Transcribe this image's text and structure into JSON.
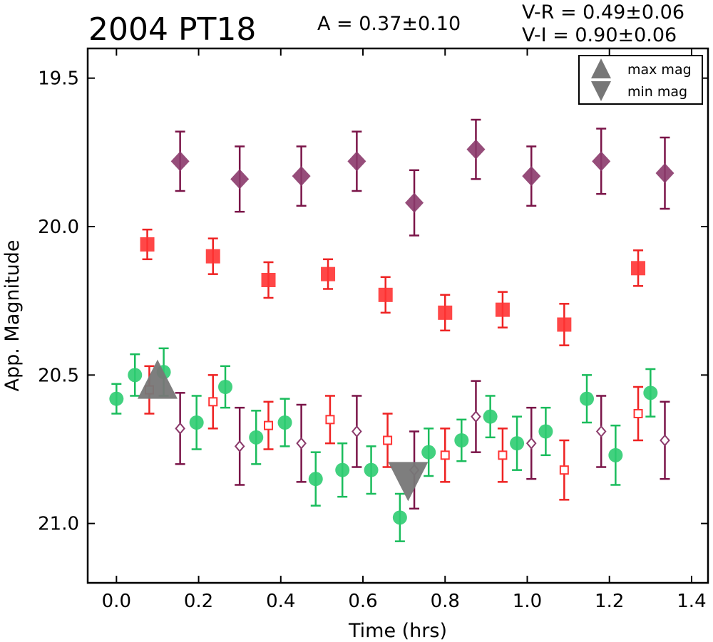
{
  "chart_data": {
    "type": "scatter",
    "title": "2004 PT18",
    "annotations": {
      "amplitude": "A  = 0.37±0.10",
      "v_minus_r": "V-R = 0.49±0.06",
      "v_minus_i": "V-I  = 0.90±0.06"
    },
    "xlabel": "Time (hrs)",
    "ylabel": "App. Magnitude",
    "xlim": [
      -0.07,
      1.44
    ],
    "ylim": [
      21.2,
      19.4
    ],
    "y_inverted": true,
    "xticks": [
      "0.0",
      "0.2",
      "0.4",
      "0.6",
      "0.8",
      "1.0",
      "1.2",
      "1.4"
    ],
    "yticks": [
      "19.5",
      "20.0",
      "20.5",
      "21.0"
    ],
    "grid": false,
    "legend": {
      "placement": "top-right",
      "entries": [
        {
          "label": "max mag",
          "marker": "triangle-up",
          "color": "#777777"
        },
        {
          "label": "min mag",
          "marker": "triangle-down",
          "color": "#777777"
        }
      ]
    },
    "colors": {
      "green": "#2ecc71",
      "green_err": "#1abc5c",
      "red": "#ff3333",
      "red_err": "#ee2222",
      "purple": "#8b3a6b",
      "purple_err": "#7a1448",
      "marker_gray": "#777777"
    },
    "series": [
      {
        "marker": "circle-filled",
        "color": "green",
        "points": [
          {
            "x": 0.0,
            "y": 20.58,
            "err": 0.05
          },
          {
            "x": 0.045,
            "y": 20.5,
            "err": 0.07
          },
          {
            "x": 0.115,
            "y": 20.49,
            "err": 0.08
          },
          {
            "x": 0.195,
            "y": 20.66,
            "err": 0.09
          },
          {
            "x": 0.265,
            "y": 20.54,
            "err": 0.07
          },
          {
            "x": 0.34,
            "y": 20.71,
            "err": 0.09
          },
          {
            "x": 0.41,
            "y": 20.66,
            "err": 0.08
          },
          {
            "x": 0.485,
            "y": 20.85,
            "err": 0.09
          },
          {
            "x": 0.55,
            "y": 20.82,
            "err": 0.09
          },
          {
            "x": 0.62,
            "y": 20.82,
            "err": 0.08
          },
          {
            "x": 0.69,
            "y": 20.98,
            "err": 0.08
          },
          {
            "x": 0.76,
            "y": 20.76,
            "err": 0.08
          },
          {
            "x": 0.84,
            "y": 20.72,
            "err": 0.07
          },
          {
            "x": 0.91,
            "y": 20.64,
            "err": 0.07
          },
          {
            "x": 0.975,
            "y": 20.73,
            "err": 0.09
          },
          {
            "x": 1.045,
            "y": 20.69,
            "err": 0.08
          },
          {
            "x": 1.145,
            "y": 20.58,
            "err": 0.08
          },
          {
            "x": 1.215,
            "y": 20.77,
            "err": 0.1
          },
          {
            "x": 1.3,
            "y": 20.56,
            "err": 0.08
          }
        ]
      },
      {
        "marker": "square-filled",
        "color": "red",
        "points": [
          {
            "x": 0.075,
            "y": 20.06,
            "err": 0.05
          },
          {
            "x": 0.235,
            "y": 20.1,
            "err": 0.06
          },
          {
            "x": 0.37,
            "y": 20.18,
            "err": 0.06
          },
          {
            "x": 0.515,
            "y": 20.16,
            "err": 0.05
          },
          {
            "x": 0.655,
            "y": 20.23,
            "err": 0.06
          },
          {
            "x": 0.8,
            "y": 20.29,
            "err": 0.06
          },
          {
            "x": 0.94,
            "y": 20.28,
            "err": 0.06
          },
          {
            "x": 1.09,
            "y": 20.33,
            "err": 0.07
          },
          {
            "x": 1.27,
            "y": 20.14,
            "err": 0.06
          }
        ]
      },
      {
        "marker": "square-open",
        "color": "red",
        "points": [
          {
            "x": 0.08,
            "y": 20.55,
            "err": 0.08
          },
          {
            "x": 0.235,
            "y": 20.59,
            "err": 0.09
          },
          {
            "x": 0.37,
            "y": 20.67,
            "err": 0.08
          },
          {
            "x": 0.52,
            "y": 20.65,
            "err": 0.08
          },
          {
            "x": 0.66,
            "y": 20.72,
            "err": 0.09
          },
          {
            "x": 0.8,
            "y": 20.77,
            "err": 0.09
          },
          {
            "x": 0.94,
            "y": 20.77,
            "err": 0.09
          },
          {
            "x": 1.09,
            "y": 20.82,
            "err": 0.1
          },
          {
            "x": 1.27,
            "y": 20.63,
            "err": 0.09
          }
        ]
      },
      {
        "marker": "diamond-filled",
        "color": "purple",
        "points": [
          {
            "x": 0.155,
            "y": 19.78,
            "err": 0.1
          },
          {
            "x": 0.3,
            "y": 19.84,
            "err": 0.11
          },
          {
            "x": 0.45,
            "y": 19.83,
            "err": 0.1
          },
          {
            "x": 0.585,
            "y": 19.78,
            "err": 0.1
          },
          {
            "x": 0.725,
            "y": 19.92,
            "err": 0.11
          },
          {
            "x": 0.875,
            "y": 19.74,
            "err": 0.1
          },
          {
            "x": 1.01,
            "y": 19.83,
            "err": 0.1
          },
          {
            "x": 1.18,
            "y": 19.78,
            "err": 0.11
          },
          {
            "x": 1.335,
            "y": 19.82,
            "err": 0.12
          }
        ]
      },
      {
        "marker": "diamond-open",
        "color": "purple",
        "points": [
          {
            "x": 0.155,
            "y": 20.68,
            "err": 0.12
          },
          {
            "x": 0.3,
            "y": 20.74,
            "err": 0.13
          },
          {
            "x": 0.45,
            "y": 20.73,
            "err": 0.13
          },
          {
            "x": 0.585,
            "y": 20.69,
            "err": 0.12
          },
          {
            "x": 0.725,
            "y": 20.82,
            "err": 0.13
          },
          {
            "x": 0.875,
            "y": 20.64,
            "err": 0.12
          },
          {
            "x": 1.01,
            "y": 20.73,
            "err": 0.12
          },
          {
            "x": 1.18,
            "y": 20.69,
            "err": 0.12
          },
          {
            "x": 1.335,
            "y": 20.72,
            "err": 0.13
          }
        ]
      }
    ],
    "extrema": [
      {
        "type": "max",
        "marker": "triangle-up",
        "x": 0.1,
        "y": 20.52
      },
      {
        "type": "min",
        "marker": "triangle-down",
        "x": 0.71,
        "y": 20.86
      }
    ]
  }
}
